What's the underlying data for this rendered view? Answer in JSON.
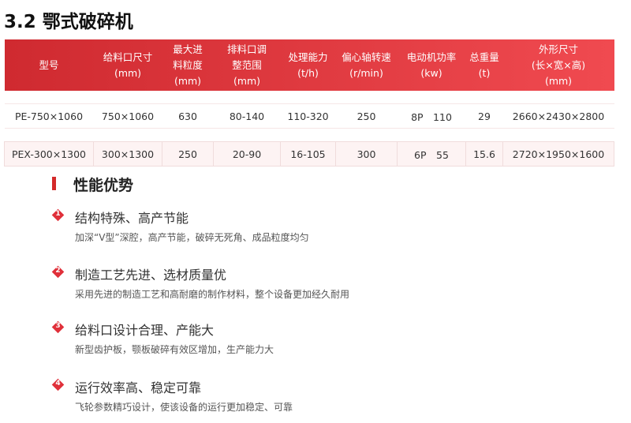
{
  "title": "3.2 鄂式破碎机",
  "table": {
    "headers": [
      [
        "型号"
      ],
      [
        "给料口尺寸",
        "(mm)"
      ],
      [
        "最大进",
        "料粒度",
        "(mm)"
      ],
      [
        "排料口调",
        "整范围",
        "(mm)"
      ],
      [
        "处理能力",
        "(t/h)"
      ],
      [
        "偏心轴转速",
        "(r/min)"
      ],
      [
        "电动机功率",
        "(kw)"
      ],
      [
        "总重量",
        "(t)"
      ],
      [
        "外形尺寸",
        "(长×宽×高)",
        "(mm)"
      ]
    ],
    "rows": [
      [
        "PE-750×1060",
        "750×1060",
        "630",
        "80-140",
        "110-320",
        "250",
        "8P　110",
        "29",
        "2660×2430×2800"
      ],
      [
        "PEX-300×1300",
        "300×1300",
        "250",
        "20-90",
        "16-105",
        "300",
        "6P　55",
        "15.6",
        "2720×1950×1600"
      ]
    ]
  },
  "section": {
    "heading": "性能优势",
    "accent": "#d42a2a",
    "items": [
      {
        "num": "1",
        "title": "结构特殊、高产节能",
        "desc": "加深“V型”深腔，高产节能，破碎无死角、成品粒度均匀"
      },
      {
        "num": "2",
        "title": "制造工艺先进、选材质量优",
        "desc": "采用先进的制造工艺和高耐磨的制作材料，整个设备更加经久耐用"
      },
      {
        "num": "3",
        "title": "给料口设计合理、产能大",
        "desc": "新型齿护板，颚板破碎有效区增加，生产能力大"
      },
      {
        "num": "4",
        "title": "运行效率高、稳定可靠",
        "desc": "飞轮参数精巧设计，使该设备的运行更加稳定、可靠"
      }
    ]
  }
}
